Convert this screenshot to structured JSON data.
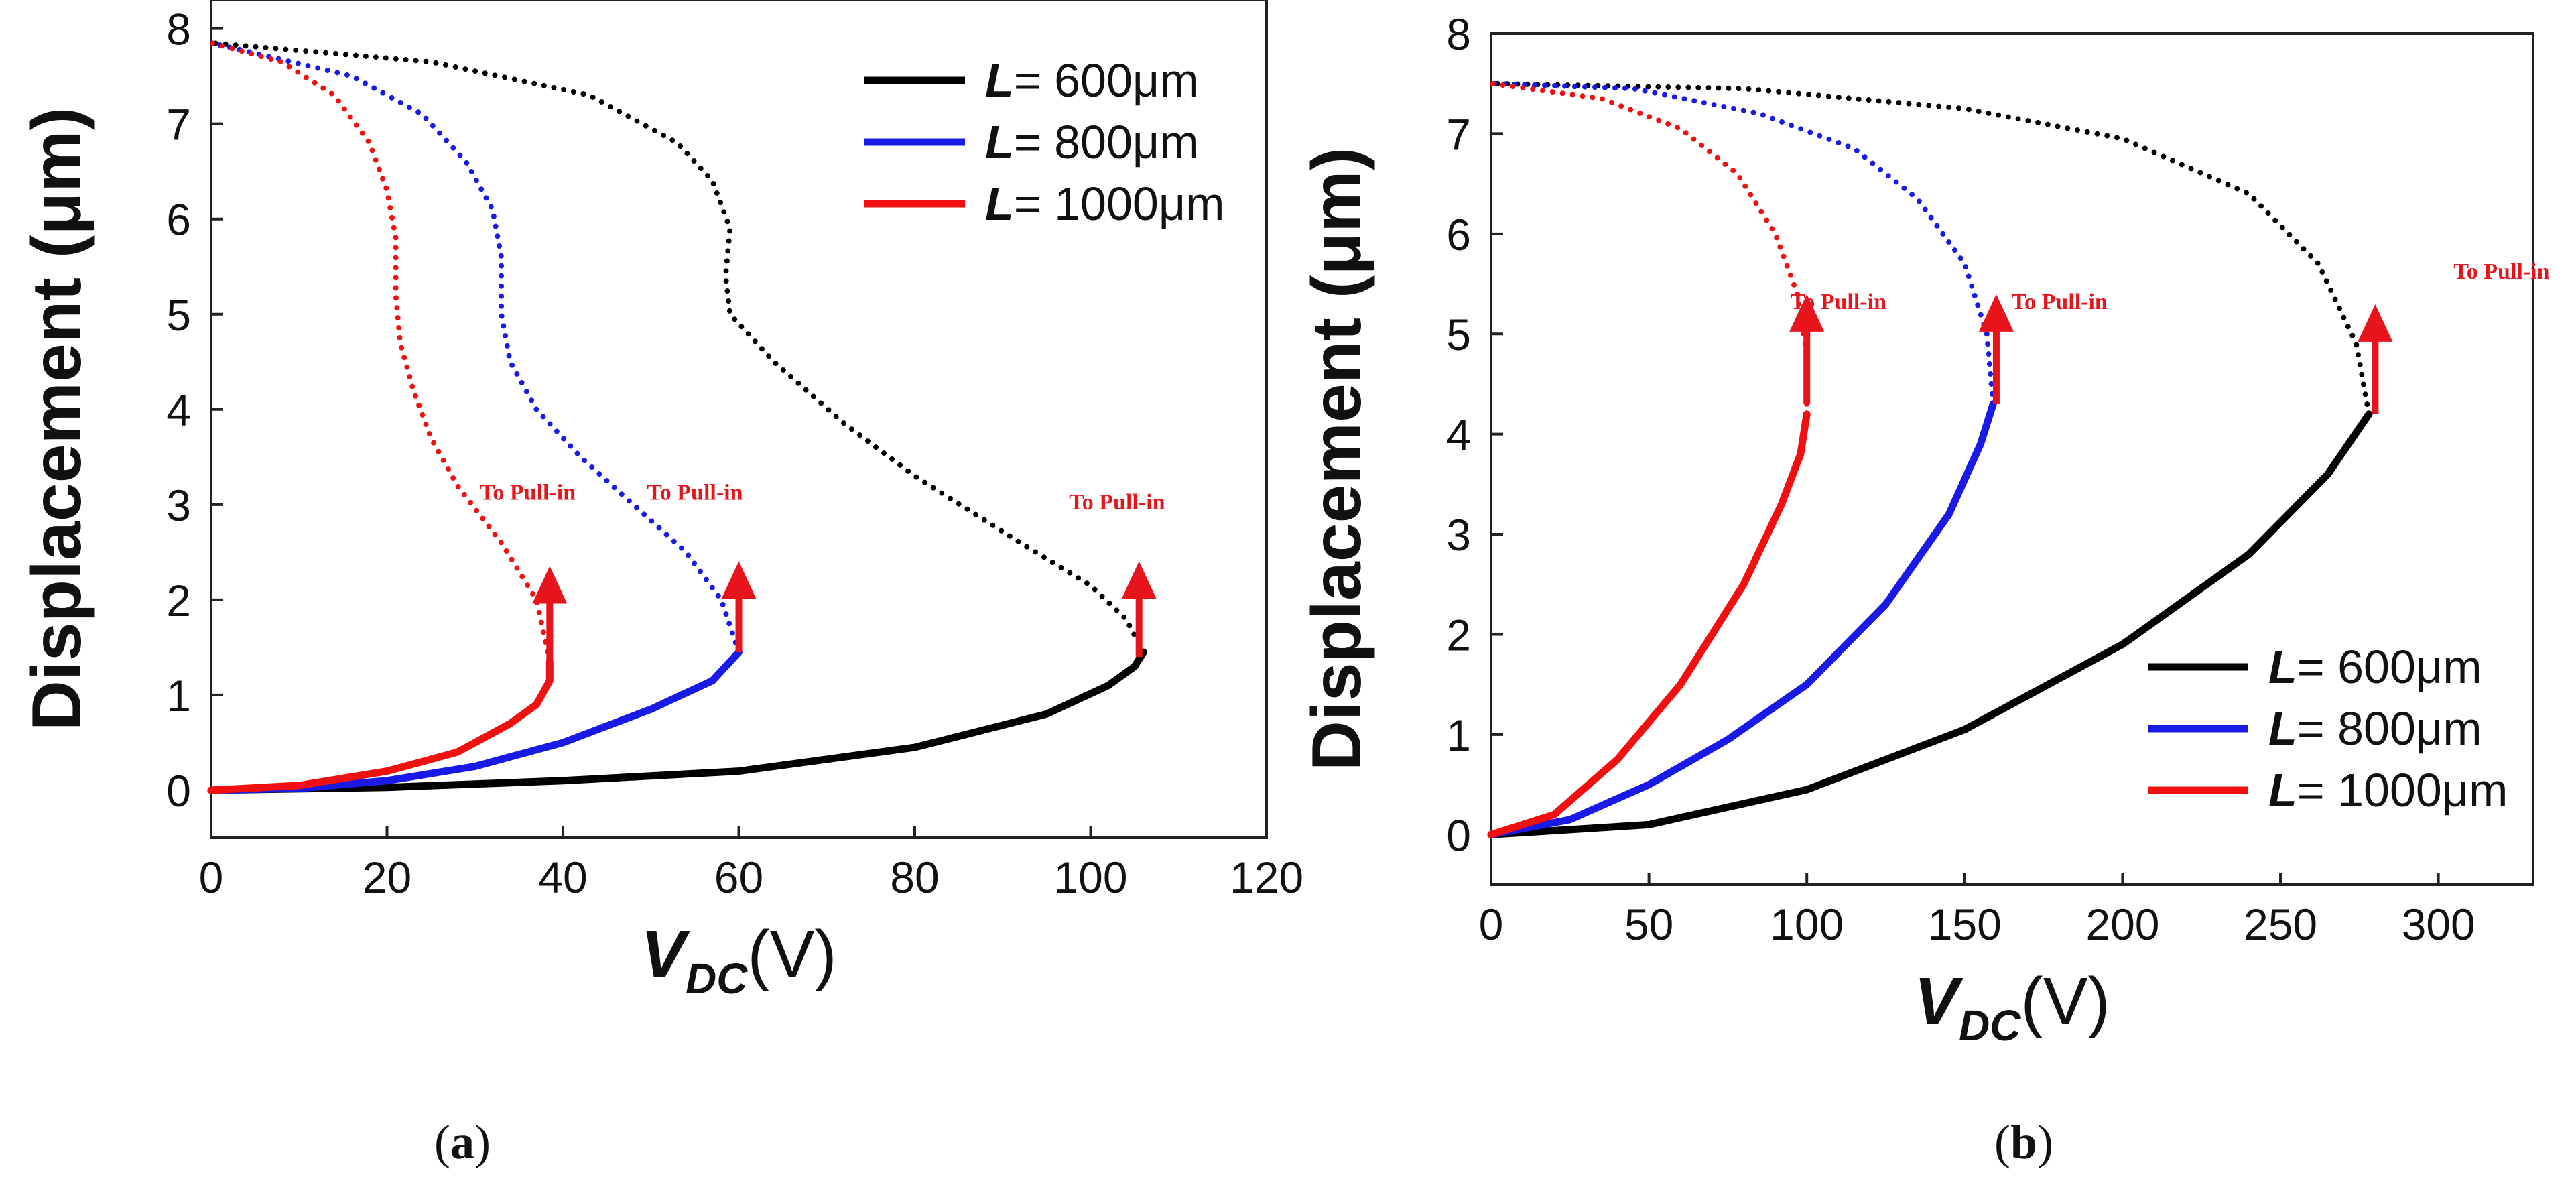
{
  "chart_data": [
    {
      "panel": "(a)",
      "type": "line",
      "xlabel": {
        "main": "V",
        "sub": "DC",
        "unit": "(V)"
      },
      "ylabel": "Displacement (μm)",
      "xlim": [
        0,
        120
      ],
      "ylim": [
        -0.5,
        8.3
      ],
      "xticks": [
        "0",
        "20",
        "40",
        "60",
        "80",
        "100",
        "120"
      ],
      "yticks": [
        "0",
        "1",
        "2",
        "3",
        "4",
        "5",
        "6",
        "7",
        "8"
      ],
      "legend_position": "top-right",
      "series": [
        {
          "name_prefix": "L",
          "name_suffix": "= 600μm",
          "color": "#000000",
          "stable": [
            [
              0,
              0
            ],
            [
              20,
              0.03
            ],
            [
              40,
              0.1
            ],
            [
              60,
              0.2
            ],
            [
              80,
              0.45
            ],
            [
              95,
              0.8
            ],
            [
              102,
              1.1
            ],
            [
              105,
              1.3
            ],
            [
              106,
              1.45
            ]
          ],
          "unstable": [
            [
              106,
              1.45
            ],
            [
              104,
              1.8
            ],
            [
              100,
              2.15
            ],
            [
              92,
              2.6
            ],
            [
              80,
              3.3
            ],
            [
              72,
              3.85
            ],
            [
              64,
              4.5
            ],
            [
              59,
              5.0
            ],
            [
              58.5,
              5.4
            ],
            [
              59,
              5.9
            ],
            [
              57,
              6.4
            ],
            [
              53,
              6.8
            ],
            [
              43,
              7.3
            ],
            [
              25,
              7.65
            ],
            [
              0,
              7.85
            ]
          ]
        },
        {
          "name_prefix": "L",
          "name_suffix": "= 800μm",
          "color": "#1a1ae6",
          "stable": [
            [
              0,
              0
            ],
            [
              10,
              0.02
            ],
            [
              20,
              0.1
            ],
            [
              30,
              0.25
            ],
            [
              40,
              0.5
            ],
            [
              50,
              0.85
            ],
            [
              57,
              1.15
            ],
            [
              60,
              1.45
            ]
          ],
          "unstable": [
            [
              60,
              1.45
            ],
            [
              58,
              2.0
            ],
            [
              54,
              2.5
            ],
            [
              48,
              3.0
            ],
            [
              42,
              3.5
            ],
            [
              37,
              4.0
            ],
            [
              34,
              4.5
            ],
            [
              33,
              5.0
            ],
            [
              33,
              5.6
            ],
            [
              32,
              6.1
            ],
            [
              29,
              6.6
            ],
            [
              24,
              7.1
            ],
            [
              16,
              7.5
            ],
            [
              0,
              7.85
            ]
          ]
        },
        {
          "name_prefix": "L",
          "name_suffix": "= 1000μm",
          "color": "#f01010",
          "stable": [
            [
              0,
              0
            ],
            [
              10,
              0.05
            ],
            [
              20,
              0.2
            ],
            [
              28,
              0.4
            ],
            [
              34,
              0.7
            ],
            [
              37,
              0.9
            ],
            [
              38.5,
              1.15
            ],
            [
              38.5,
              1.35
            ]
          ],
          "unstable": [
            [
              38.5,
              1.35
            ],
            [
              37,
              2.0
            ],
            [
              33,
              2.6
            ],
            [
              28,
              3.2
            ],
            [
              25,
              3.7
            ],
            [
              23,
              4.2
            ],
            [
              21.5,
              4.7
            ],
            [
              21,
              5.2
            ],
            [
              21,
              5.8
            ],
            [
              20,
              6.3
            ],
            [
              18,
              6.8
            ],
            [
              14,
              7.3
            ],
            [
              8,
              7.65
            ],
            [
              0,
              7.85
            ]
          ]
        }
      ],
      "annotations": [
        {
          "text": "To Pull-in",
          "x": 36,
          "y": 3.05,
          "arrow_x": 38.5,
          "arrow_y0": 1.15,
          "arrow_y1": 2.2
        },
        {
          "text": "To Pull-in",
          "x": 55,
          "y": 3.05,
          "arrow_x": 60,
          "arrow_y0": 1.45,
          "arrow_y1": 2.25
        },
        {
          "text": "To Pull-in",
          "x": 103,
          "y": 2.95,
          "arrow_x": 105.5,
          "arrow_y0": 1.4,
          "arrow_y1": 2.25
        }
      ]
    },
    {
      "panel": "(b)",
      "type": "line",
      "xlabel": {
        "main": "V",
        "sub": "DC",
        "unit": "(V)"
      },
      "ylabel": "Displacement (μm)",
      "xlim": [
        0,
        330
      ],
      "ylim": [
        -0.5,
        8
      ],
      "xticks": [
        "0",
        "50",
        "100",
        "150",
        "200",
        "250",
        "300"
      ],
      "yticks": [
        "0",
        "1",
        "2",
        "3",
        "4",
        "5",
        "6",
        "7",
        "8"
      ],
      "legend_position": "bottom-right",
      "series": [
        {
          "name_prefix": "L",
          "name_suffix": "= 600μm",
          "color": "#000000",
          "stable": [
            [
              0,
              0
            ],
            [
              50,
              0.1
            ],
            [
              100,
              0.45
            ],
            [
              150,
              1.05
            ],
            [
              200,
              1.9
            ],
            [
              240,
              2.8
            ],
            [
              265,
              3.6
            ],
            [
              278,
              4.2
            ]
          ],
          "unstable": [
            [
              278,
              4.2
            ],
            [
              274,
              4.9
            ],
            [
              262,
              5.7
            ],
            [
              240,
              6.4
            ],
            [
              200,
              6.95
            ],
            [
              150,
              7.25
            ],
            [
              80,
              7.45
            ],
            [
              0,
              7.5
            ]
          ]
        },
        {
          "name_prefix": "L",
          "name_suffix": "= 800μm",
          "color": "#1a1ae6",
          "stable": [
            [
              0,
              0
            ],
            [
              25,
              0.15
            ],
            [
              50,
              0.5
            ],
            [
              75,
              0.95
            ],
            [
              100,
              1.5
            ],
            [
              125,
              2.3
            ],
            [
              145,
              3.2
            ],
            [
              155,
              3.9
            ],
            [
              159,
              4.3
            ]
          ],
          "unstable": [
            [
              159,
              4.3
            ],
            [
              157,
              5.0
            ],
            [
              150,
              5.7
            ],
            [
              135,
              6.35
            ],
            [
              115,
              6.85
            ],
            [
              85,
              7.2
            ],
            [
              45,
              7.45
            ],
            [
              0,
              7.5
            ]
          ]
        },
        {
          "name_prefix": "L",
          "name_suffix": "= 1000μm",
          "color": "#f01010",
          "stable": [
            [
              0,
              0
            ],
            [
              20,
              0.2
            ],
            [
              40,
              0.75
            ],
            [
              60,
              1.5
            ],
            [
              80,
              2.5
            ],
            [
              92,
              3.3
            ],
            [
              98,
              3.8
            ],
            [
              100,
              4.2
            ]
          ],
          "unstable": [
            [
              100,
              4.2
            ],
            [
              100,
              4.8
            ],
            [
              97,
              5.4
            ],
            [
              90,
              6.0
            ],
            [
              78,
              6.6
            ],
            [
              60,
              7.05
            ],
            [
              35,
              7.35
            ],
            [
              0,
              7.5
            ]
          ]
        }
      ],
      "annotations": [
        {
          "text": "To Pull-in",
          "x": 110,
          "y": 5.25,
          "arrow_x": 100,
          "arrow_y0": 4.3,
          "arrow_y1": 5.25
        },
        {
          "text": "To Pull-in",
          "x": 180,
          "y": 5.25,
          "arrow_x": 160,
          "arrow_y0": 4.3,
          "arrow_y1": 5.25
        },
        {
          "text": "To Pull-in",
          "x": 320,
          "y": 5.55,
          "arrow_x": 280,
          "arrow_y0": 4.2,
          "arrow_y1": 5.15
        }
      ]
    }
  ],
  "panel_labels": {
    "a": {
      "open": "(",
      "letter": "a",
      "close": ")"
    },
    "b": {
      "open": "(",
      "letter": "b",
      "close": ")"
    }
  }
}
